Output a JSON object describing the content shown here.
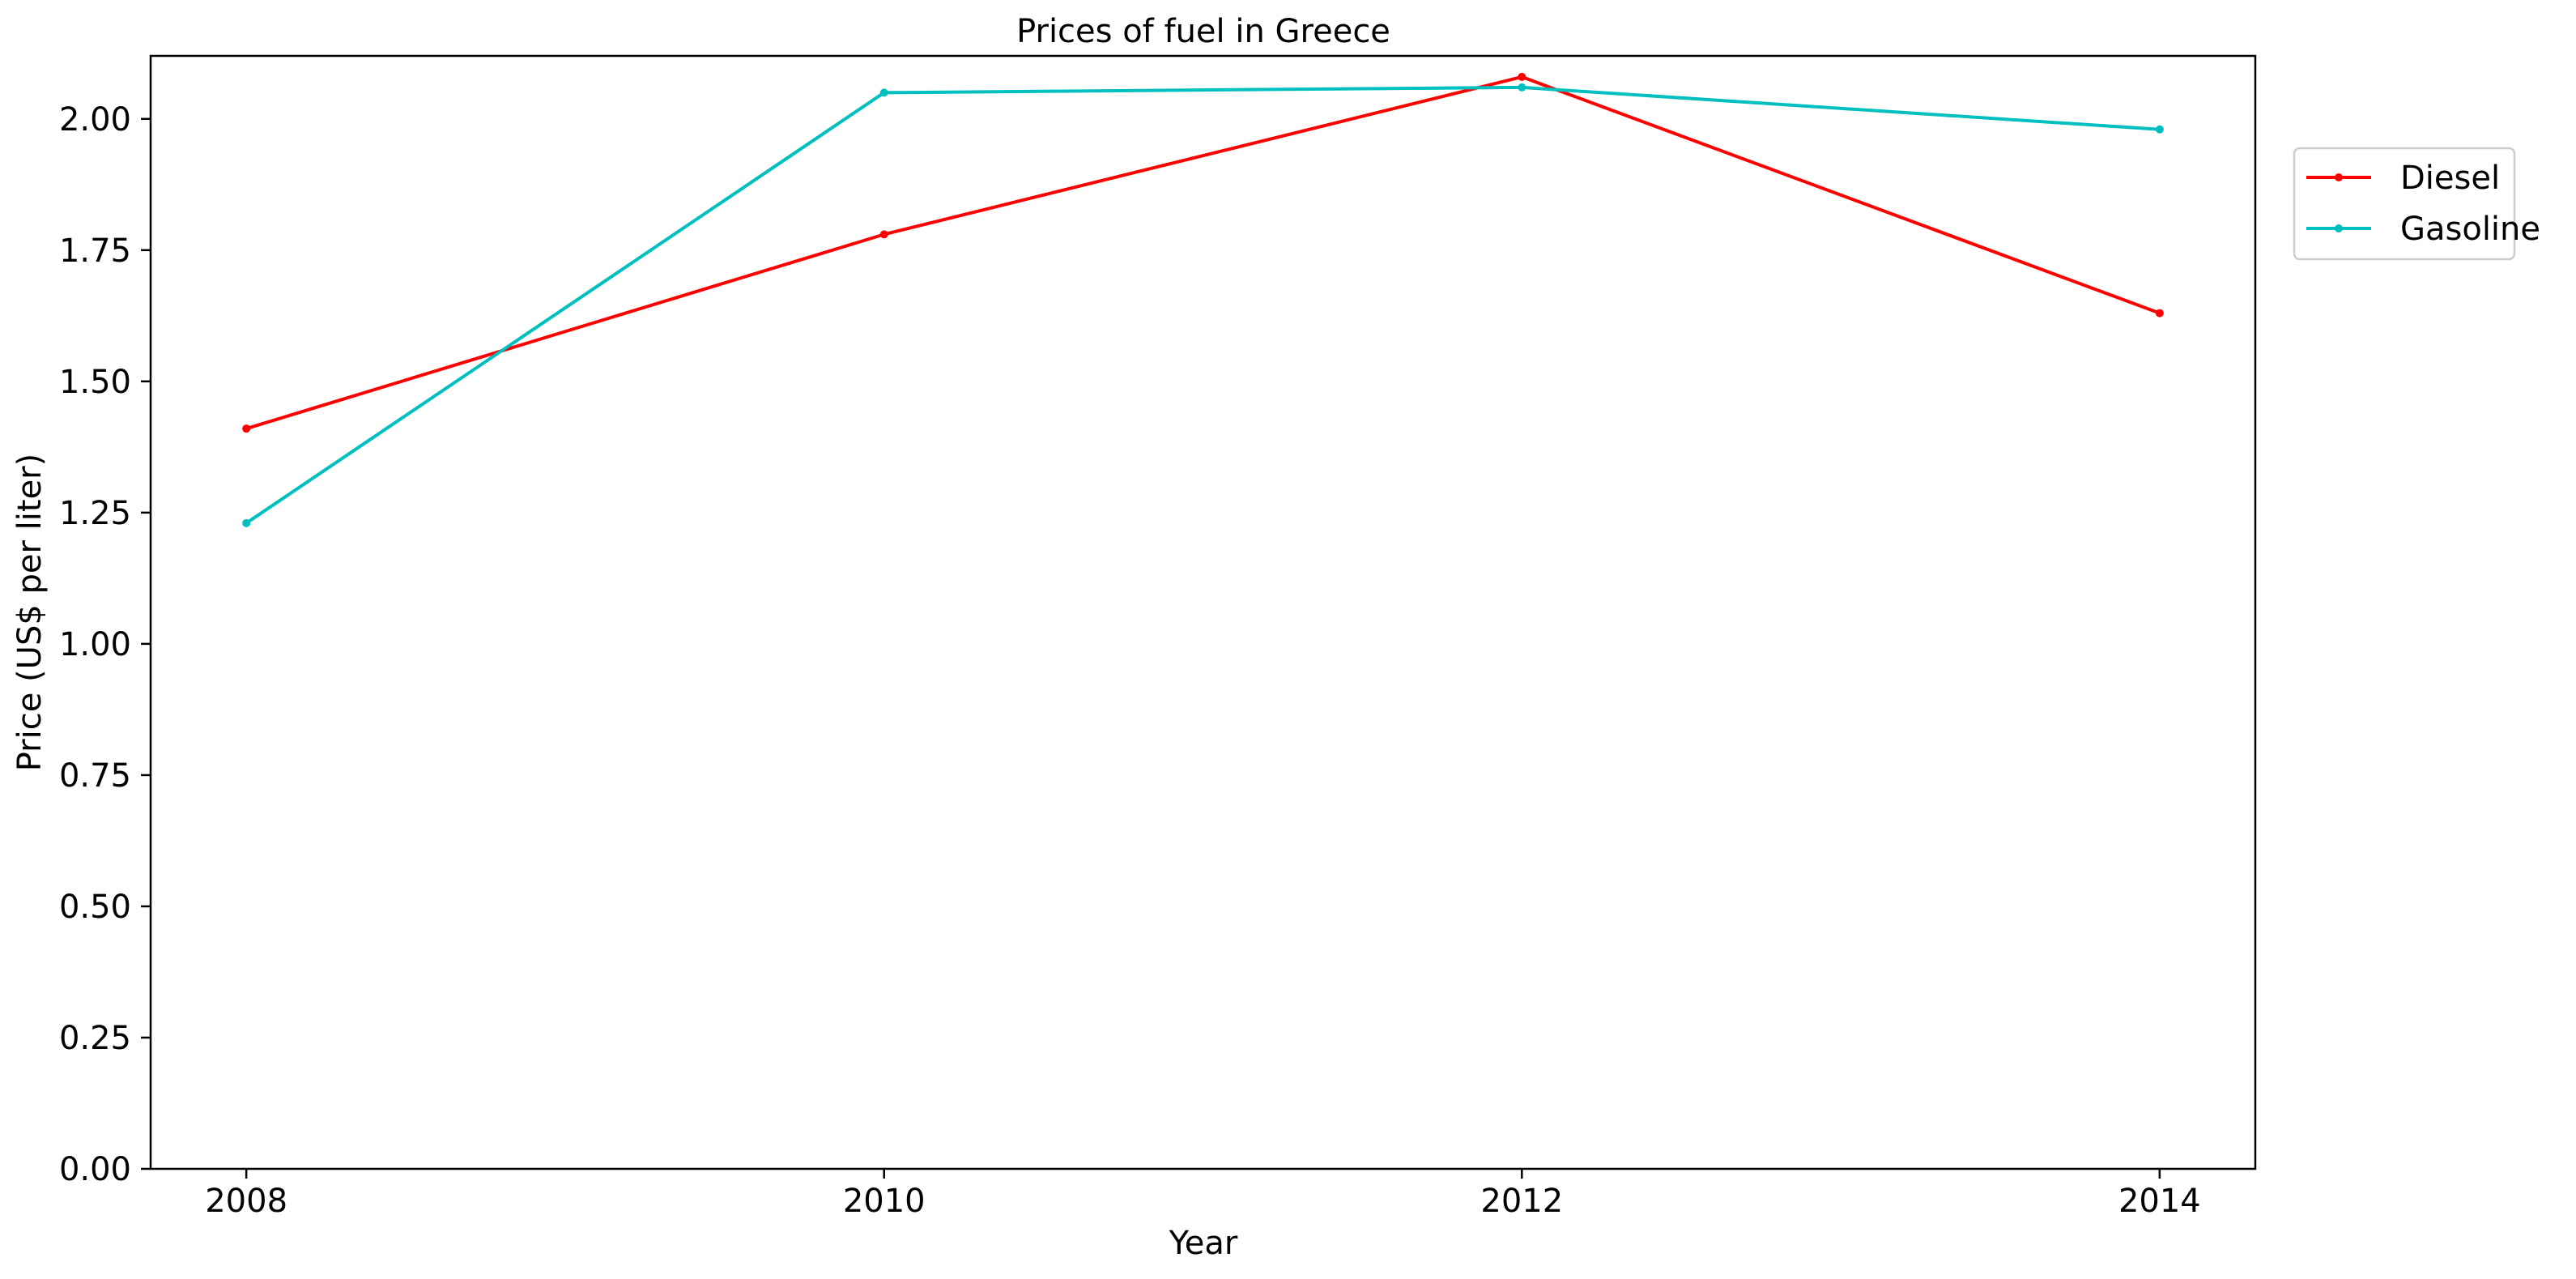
{
  "chart_data": {
    "type": "line",
    "title": "Prices of fuel in Greece",
    "xlabel": "Year",
    "ylabel": "Price (US$ per liter)",
    "x": [
      2008,
      2010,
      2012,
      2014
    ],
    "x_ticks": [
      "2008",
      "2010",
      "2012",
      "2014"
    ],
    "xlim": [
      2007.7,
      2014.3
    ],
    "ylim": [
      0,
      2.12
    ],
    "y_ticks": [
      "0.00",
      "0.25",
      "0.50",
      "0.75",
      "1.00",
      "1.25",
      "1.50",
      "1.75",
      "2.00"
    ],
    "grid": false,
    "legend_position": "upper right, outside plot",
    "series": [
      {
        "name": "Diesel",
        "color": "#ff0000",
        "marker": "dot",
        "values": [
          1.41,
          1.78,
          2.08,
          1.63
        ]
      },
      {
        "name": "Gasoline",
        "color": "#00bfbf",
        "marker": "dot",
        "values": [
          1.23,
          2.05,
          2.06,
          1.98
        ]
      }
    ]
  }
}
